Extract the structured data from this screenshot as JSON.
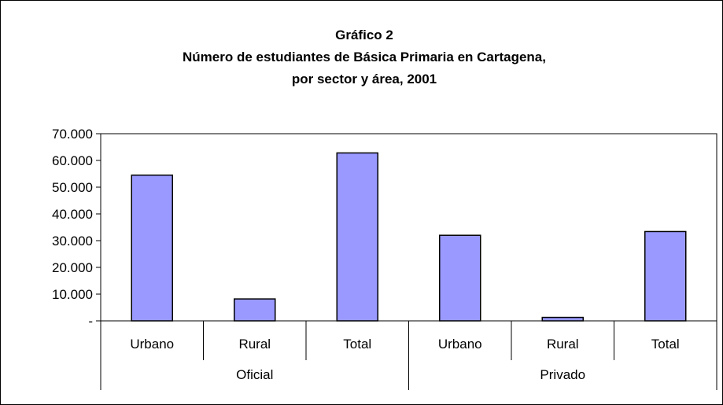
{
  "chart_data": {
    "type": "bar",
    "title_lines": [
      "Gráfico 2",
      "Número de estudiantes de Básica Primaria en Cartagena,",
      "por sector y área, 2001"
    ],
    "categories": [
      "Urbano",
      "Rural",
      "Total",
      "Urbano",
      "Rural",
      "Total"
    ],
    "groups": [
      {
        "label": "Oficial",
        "span": 3
      },
      {
        "label": "Privado",
        "span": 3
      }
    ],
    "values": [
      54500,
      8200,
      62800,
      32000,
      1300,
      33400
    ],
    "ylim": [
      0,
      70000
    ],
    "yticks": [
      0,
      10000,
      20000,
      30000,
      40000,
      50000,
      60000,
      70000
    ],
    "ytick_labels": [
      "-",
      "10.000",
      "20.000",
      "30.000",
      "40.000",
      "50.000",
      "60.000",
      "70.000"
    ],
    "bar_color": "#9999ff",
    "grid": false,
    "legend": "none"
  }
}
